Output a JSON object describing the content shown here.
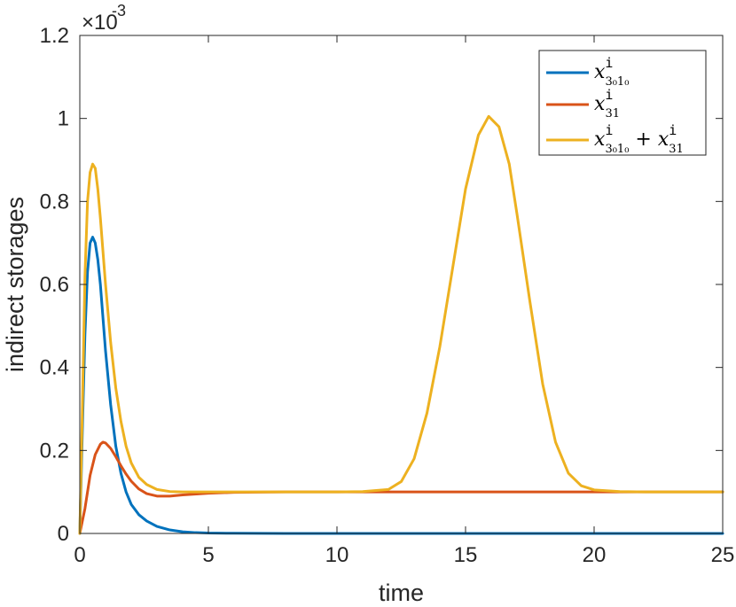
{
  "chart_data": {
    "type": "line",
    "xlabel": "time",
    "ylabel": "indirect  storages",
    "xlim": [
      0,
      25
    ],
    "ylim": [
      0,
      0.0012
    ],
    "y_exponent_label": "×10",
    "y_exponent_power": "-3",
    "x_ticks": [
      "0",
      "5",
      "10",
      "15",
      "20",
      "25"
    ],
    "x_tick_values": [
      0,
      5,
      10,
      15,
      20,
      25
    ],
    "y_ticks": [
      "0",
      "0.2",
      "0.4",
      "0.6",
      "0.8",
      "1",
      "1.2"
    ],
    "y_tick_values": [
      0,
      0.0002,
      0.0004,
      0.0006,
      0.0008,
      0.001,
      0.0012
    ],
    "grid": false,
    "box": true,
    "legend_position": "top-right",
    "series": [
      {
        "legend_base": "x",
        "legend_sup": "i",
        "legend_sub": "3₀1₀",
        "color": "#0072BD",
        "x": [
          0,
          0.1,
          0.2,
          0.3,
          0.4,
          0.5,
          0.6,
          0.7,
          0.8,
          0.9,
          1.0,
          1.2,
          1.4,
          1.6,
          1.8,
          2.0,
          2.3,
          2.6,
          3.0,
          3.5,
          4.0,
          4.5,
          5.0,
          6.0,
          8.0,
          10,
          15,
          20,
          25
        ],
        "y": [
          0,
          0.00025,
          0.00048,
          0.00063,
          0.0007,
          0.000714,
          0.0007,
          0.00066,
          0.0006,
          0.00052,
          0.00044,
          0.00031,
          0.00021,
          0.000145,
          0.0001,
          7e-05,
          4.5e-05,
          3e-05,
          1.7e-05,
          8.5e-06,
          4e-06,
          2e-06,
          1e-06,
          4e-07,
          0,
          0,
          0,
          0,
          0
        ]
      },
      {
        "legend_base": "x",
        "legend_sup": "i",
        "legend_sub": "31",
        "color": "#D95319",
        "x": [
          0,
          0.2,
          0.4,
          0.6,
          0.8,
          0.9,
          1.0,
          1.2,
          1.4,
          1.6,
          1.8,
          2.0,
          2.3,
          2.6,
          3.0,
          3.5,
          4.0,
          5.0,
          6.0,
          8.0,
          10,
          15,
          20,
          25
        ],
        "y": [
          0,
          6e-05,
          0.00014,
          0.00019,
          0.000215,
          0.00022,
          0.000218,
          0.000205,
          0.000185,
          0.000163,
          0.000143,
          0.000126,
          0.000107,
          9.6e-05,
          9e-05,
          9e-05,
          9.3e-05,
          9.7e-05,
          9.9e-05,
          0.0001,
          0.0001,
          0.0001,
          0.0001,
          0.0001
        ]
      },
      {
        "legend_base": "x",
        "legend_sup": "i",
        "legend_sub": "3₀1₀",
        "legend_plus": "+",
        "legend_base2": "x",
        "legend_sup2": "i",
        "legend_sub2": "31",
        "color": "#EDB120",
        "x": [
          0,
          0.1,
          0.2,
          0.3,
          0.4,
          0.5,
          0.6,
          0.7,
          0.8,
          0.9,
          1.0,
          1.2,
          1.4,
          1.6,
          1.8,
          2.0,
          2.3,
          2.6,
          3.0,
          3.5,
          4.0,
          5.0,
          6.0,
          8.0,
          10,
          11,
          12,
          12.5,
          13,
          13.5,
          14,
          14.5,
          15,
          15.5,
          15.9,
          16.3,
          16.7,
          17,
          17.5,
          18,
          18.5,
          19,
          19.5,
          20,
          21,
          22,
          25
        ],
        "y": [
          0,
          0.0003,
          0.00062,
          0.0008,
          0.00087,
          0.00089,
          0.00088,
          0.00083,
          0.00076,
          0.00068,
          0.0006,
          0.00046,
          0.00035,
          0.00027,
          0.00021,
          0.00017,
          0.000135,
          0.000118,
          0.000106,
          0.000101,
          0.0001,
          0.0001,
          0.0001,
          0.0001,
          0.0001,
          0.000101,
          0.000106,
          0.000125,
          0.00018,
          0.00029,
          0.00045,
          0.00064,
          0.00083,
          0.00096,
          0.001005,
          0.00098,
          0.00089,
          0.00077,
          0.00056,
          0.00036,
          0.00022,
          0.000145,
          0.000115,
          0.000105,
          0.000101,
          0.0001,
          0.0001
        ]
      }
    ]
  }
}
